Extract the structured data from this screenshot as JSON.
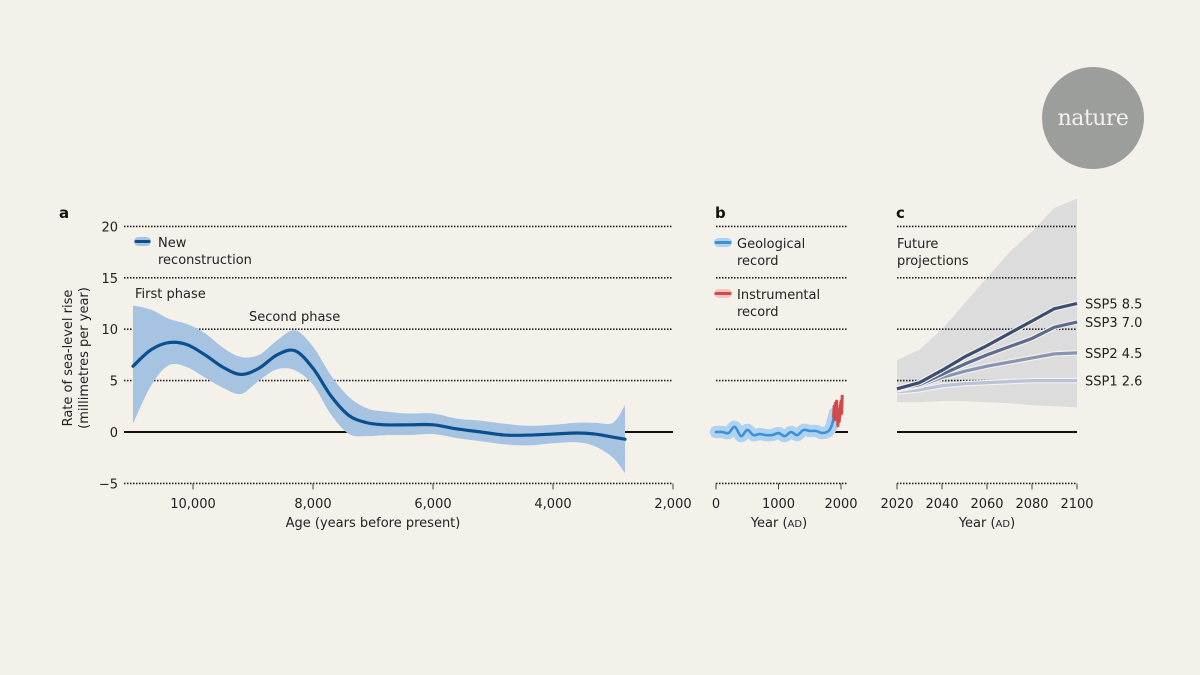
{
  "logo": {
    "text": "nature",
    "color": "#9c9e9c"
  },
  "colors": {
    "background": "#f4f1eb",
    "reconstruction_line": "#0b4f8f",
    "reconstruction_band": "#a6c3e1",
    "geological_line": "#3f8fd6",
    "geological_band": "#aed2ef",
    "instrumental": "#d04a4a",
    "projection_band": "#dcdcdc",
    "ssp5": "#3b4e70",
    "ssp3": "#5b6c8f",
    "ssp2": "#8894b3",
    "ssp1": "#b9c2d8"
  },
  "chart_data": [
    {
      "panel": "a",
      "type": "line",
      "xlabel": "Age (years before present)",
      "ylabel_line1": "Rate of sea-level rise",
      "ylabel_line2": "(millimetres per year)",
      "xlim": [
        11050,
        2000
      ],
      "ylim": [
        -5,
        20
      ],
      "x_reversed": true,
      "x_ticks": [
        10000,
        8000,
        6000,
        4000,
        2000
      ],
      "x_tick_labels": [
        "10,000",
        "8,000",
        "6,000",
        "4,000",
        "2,000"
      ],
      "y_ticks": [
        20,
        15,
        10,
        5,
        0,
        -5
      ],
      "y_tick_labels": [
        "20",
        "15",
        "10",
        "5",
        "0",
        "−5"
      ],
      "grid": "horizontal-dotted",
      "legend": {
        "label_line1": "New",
        "label_line2": "reconstruction",
        "placement": "top-left"
      },
      "annotations": [
        {
          "text": "First phase",
          "x": 11000,
          "y": 13.5
        },
        {
          "text": "Second phase",
          "x": 8800,
          "y": 11.3
        }
      ],
      "series": [
        {
          "name": "New reconstruction",
          "x": [
            11000,
            10700,
            10400,
            10100,
            9800,
            9500,
            9200,
            8900,
            8600,
            8300,
            8000,
            7700,
            7400,
            7100,
            6800,
            6400,
            6000,
            5600,
            5200,
            4800,
            4400,
            4000,
            3600,
            3300,
            3000,
            2800
          ],
          "y": [
            6.4,
            8.0,
            8.7,
            8.5,
            7.5,
            6.3,
            5.6,
            6.2,
            7.5,
            7.9,
            6.2,
            3.5,
            1.6,
            0.9,
            0.7,
            0.7,
            0.7,
            0.3,
            0.0,
            -0.3,
            -0.3,
            -0.2,
            -0.1,
            -0.2,
            -0.5,
            -0.7
          ],
          "lower": [
            0.8,
            4.5,
            6.5,
            6.3,
            5.3,
            4.3,
            3.7,
            5.0,
            6.1,
            6.0,
            4.6,
            1.7,
            -0.2,
            -0.4,
            -0.3,
            -0.3,
            -0.2,
            -0.6,
            -0.9,
            -1.2,
            -1.3,
            -1.1,
            -1.0,
            -1.4,
            -2.5,
            -4.0
          ],
          "upper": [
            12.3,
            11.9,
            11.0,
            10.5,
            9.6,
            8.2,
            7.3,
            7.5,
            8.9,
            9.9,
            8.3,
            5.5,
            3.4,
            2.3,
            2.0,
            1.8,
            1.8,
            1.3,
            1.1,
            0.8,
            0.6,
            0.7,
            0.9,
            0.9,
            0.9,
            2.6
          ]
        }
      ]
    },
    {
      "panel": "b",
      "type": "line",
      "xlabel": "Year (AD)",
      "xlabel_main": "Year (",
      "xlabel_sc": "AD",
      "xlabel_end": ")",
      "xlim": [
        0,
        2050
      ],
      "ylim": [
        -5,
        20
      ],
      "x_ticks": [
        0,
        1000,
        2000
      ],
      "x_tick_labels": [
        "0",
        "1000",
        "2000"
      ],
      "grid": "horizontal-dotted",
      "legend": [
        {
          "label_line1": "Geological",
          "label_line2": "record"
        },
        {
          "label_line1": "Instrumental",
          "label_line2": "record"
        }
      ],
      "series": [
        {
          "name": "Geological record",
          "x": [
            0,
            100,
            200,
            300,
            400,
            500,
            600,
            700,
            800,
            900,
            1000,
            1100,
            1200,
            1300,
            1400,
            1500,
            1600,
            1700,
            1800,
            1850,
            1900
          ],
          "y": [
            0.0,
            0.0,
            -0.1,
            0.5,
            -0.4,
            0.2,
            -0.3,
            -0.2,
            -0.3,
            -0.3,
            -0.1,
            -0.4,
            0.0,
            -0.3,
            0.2,
            0.1,
            0.1,
            -0.1,
            0.1,
            0.6,
            1.8
          ],
          "band_halfwidth": 0.6
        },
        {
          "name": "Instrumental record",
          "x": [
            1880,
            1890,
            1900,
            1910,
            1920,
            1930,
            1940,
            1950,
            1960,
            1970,
            1980,
            1990,
            2000,
            2010,
            2020
          ],
          "y": [
            1.4,
            2.5,
            1.2,
            2.8,
            1.8,
            3.0,
            2.2,
            0.6,
            2.0,
            1.0,
            1.5,
            2.4,
            3.0,
            1.8,
            3.6
          ]
        }
      ]
    },
    {
      "panel": "c",
      "type": "line",
      "annotation_line1": "Future",
      "annotation_line2": "projections",
      "xlabel": "Year (AD)",
      "xlabel_main": "Year (",
      "xlabel_sc": "AD",
      "xlabel_end": ")",
      "xlim": [
        2020,
        2100
      ],
      "ylim": [
        -5,
        20
      ],
      "x_ticks": [
        2020,
        2040,
        2060,
        2080,
        2100
      ],
      "x_tick_labels": [
        "2020",
        "2040",
        "2060",
        "2080",
        "2100"
      ],
      "grid": "horizontal-dotted",
      "band": {
        "x": [
          2020,
          2030,
          2040,
          2050,
          2060,
          2070,
          2080,
          2090,
          2100
        ],
        "lower": [
          2.9,
          2.9,
          3.0,
          3.0,
          2.9,
          2.8,
          2.6,
          2.5,
          2.4
        ],
        "upper": [
          7.0,
          8.0,
          10.0,
          12.5,
          15.0,
          17.5,
          19.5,
          21.8,
          22.7
        ]
      },
      "series": [
        {
          "name": "SSP5 8.5",
          "x": [
            2020,
            2030,
            2040,
            2050,
            2060,
            2070,
            2080,
            2090,
            2100
          ],
          "y": [
            4.2,
            4.8,
            6.0,
            7.3,
            8.4,
            9.6,
            10.8,
            12.0,
            12.5
          ]
        },
        {
          "name": "SSP3 7.0",
          "x": [
            2020,
            2030,
            2040,
            2050,
            2060,
            2070,
            2080,
            2090,
            2100
          ],
          "y": [
            4.2,
            4.6,
            5.6,
            6.6,
            7.5,
            8.3,
            9.1,
            10.2,
            10.7
          ]
        },
        {
          "name": "SSP2 4.5",
          "x": [
            2020,
            2030,
            2040,
            2050,
            2060,
            2070,
            2080,
            2090,
            2100
          ],
          "y": [
            4.1,
            4.5,
            5.3,
            5.9,
            6.4,
            6.8,
            7.2,
            7.6,
            7.7
          ]
        },
        {
          "name": "SSP1 2.6",
          "x": [
            2020,
            2030,
            2040,
            2050,
            2060,
            2070,
            2080,
            2090,
            2100
          ],
          "y": [
            3.9,
            4.1,
            4.5,
            4.7,
            4.8,
            4.9,
            5.0,
            5.0,
            5.0
          ]
        }
      ]
    }
  ]
}
